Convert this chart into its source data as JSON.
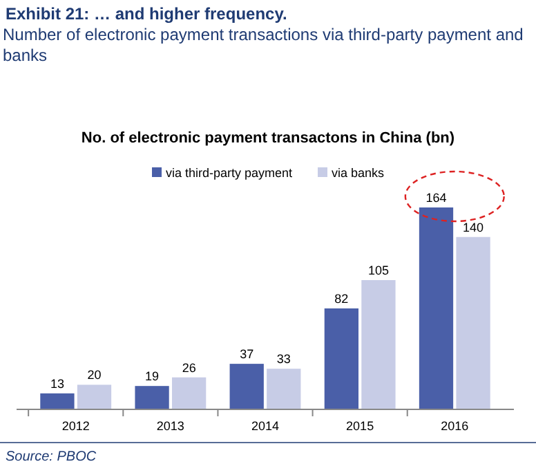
{
  "chart_data": {
    "type": "bar",
    "title": "No. of electronic payment transactons in China (bn)",
    "annotations": [
      "Exhibit 21: … and higher frequency.",
      "Number of electronic payment transactions via third-party payment and banks",
      "Source: PBOC"
    ],
    "categories": [
      "2012",
      "2013",
      "2014",
      "2015",
      "2016"
    ],
    "series": [
      {
        "name": "via third-party payment",
        "color": "#4a5fa8",
        "values": [
          13,
          19,
          37,
          82,
          164
        ]
      },
      {
        "name": "via banks",
        "color": "#c7cce6",
        "values": [
          20,
          26,
          33,
          105,
          140
        ]
      }
    ],
    "data_labels": true,
    "legend": "top",
    "grid": false
  }
}
